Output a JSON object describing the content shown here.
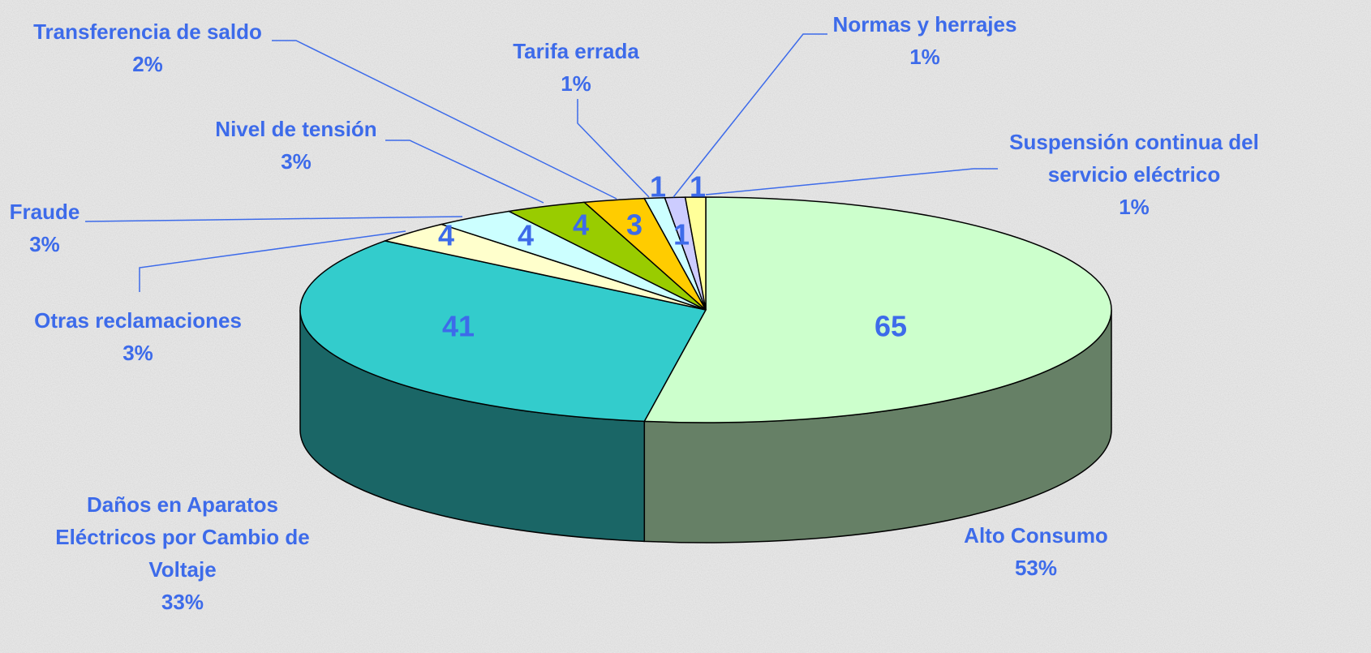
{
  "chart_data": {
    "type": "pie",
    "categories": [
      "Alto Consumo",
      "Daños en Aparatos Eléctricos por Cambio de Voltaje",
      "Otras reclamaciones",
      "Fraude",
      "Nivel de tensión",
      "Transferencia de saldo",
      "Tarifa errada",
      "Normas y herrajes",
      "Suspensión continua del servicio eléctrico"
    ],
    "values": [
      65,
      41,
      4,
      4,
      4,
      3,
      1,
      1,
      1
    ],
    "percent_labels": [
      "53%",
      "33%",
      "3%",
      "3%",
      "3%",
      "2%",
      "1%",
      "1%",
      "1%"
    ],
    "colors": [
      "#ccffcc",
      "#33cccc",
      "#ffffcc",
      "#ccffff",
      "#99cc00",
      "#ffcc00",
      "#ccffff",
      "#ccccff",
      "#ffff99"
    ]
  }
}
